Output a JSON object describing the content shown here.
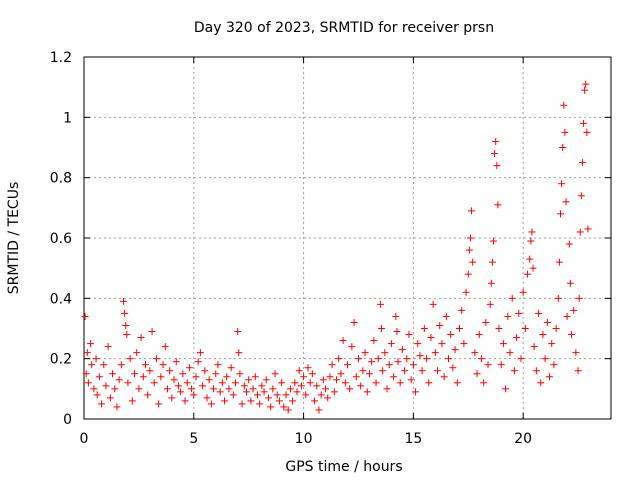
{
  "chart_data": {
    "type": "scatter",
    "title": "Day 320 of 2023, SRMTID for receiver prsn",
    "xlabel": "GPS time / hours",
    "ylabel": "SRMTID / TECUs",
    "xlim": [
      0,
      24
    ],
    "ylim": [
      0,
      1.2
    ],
    "xticks": [
      0,
      5,
      10,
      15,
      20
    ],
    "yticks": [
      0,
      0.2,
      0.4,
      0.6,
      0.8,
      1.0,
      1.2
    ],
    "xtick_labels": [
      "0",
      "5",
      "10",
      "15",
      "20"
    ],
    "ytick_labels": [
      "0",
      "0.2",
      "0.4",
      "0.6",
      "0.8",
      "1",
      "1.2"
    ],
    "grid": true,
    "marker": "+",
    "color": "#ff0000",
    "series": [
      {
        "name": "SRMTID",
        "points": [
          [
            0.05,
            0.34
          ],
          [
            0.1,
            0.15
          ],
          [
            0.15,
            0.22
          ],
          [
            0.2,
            0.12
          ],
          [
            0.3,
            0.25
          ],
          [
            0.35,
            0.18
          ],
          [
            0.45,
            0.1
          ],
          [
            0.55,
            0.2
          ],
          [
            0.6,
            0.08
          ],
          [
            0.7,
            0.14
          ],
          [
            0.8,
            0.05
          ],
          [
            0.9,
            0.18
          ],
          [
            1.0,
            0.11
          ],
          [
            1.1,
            0.24
          ],
          [
            1.2,
            0.07
          ],
          [
            1.3,
            0.15
          ],
          [
            1.4,
            0.1
          ],
          [
            1.5,
            0.04
          ],
          [
            1.6,
            0.13
          ],
          [
            1.7,
            0.18
          ],
          [
            1.8,
            0.39
          ],
          [
            1.85,
            0.35
          ],
          [
            1.9,
            0.31
          ],
          [
            1.95,
            0.28
          ],
          [
            2.0,
            0.12
          ],
          [
            2.1,
            0.2
          ],
          [
            2.2,
            0.06
          ],
          [
            2.3,
            0.15
          ],
          [
            2.4,
            0.22
          ],
          [
            2.5,
            0.1
          ],
          [
            2.6,
            0.27
          ],
          [
            2.7,
            0.14
          ],
          [
            2.8,
            0.18
          ],
          [
            2.9,
            0.08
          ],
          [
            3.0,
            0.16
          ],
          [
            3.1,
            0.29
          ],
          [
            3.2,
            0.12
          ],
          [
            3.3,
            0.2
          ],
          [
            3.4,
            0.05
          ],
          [
            3.5,
            0.14
          ],
          [
            3.6,
            0.18
          ],
          [
            3.7,
            0.24
          ],
          [
            3.8,
            0.1
          ],
          [
            3.9,
            0.16
          ],
          [
            4.0,
            0.07
          ],
          [
            4.1,
            0.13
          ],
          [
            4.2,
            0.19
          ],
          [
            4.3,
            0.11
          ],
          [
            4.4,
            0.09
          ],
          [
            4.5,
            0.15
          ],
          [
            4.6,
            0.06
          ],
          [
            4.7,
            0.12
          ],
          [
            4.8,
            0.17
          ],
          [
            4.9,
            0.1
          ],
          [
            5.0,
            0.08
          ],
          [
            5.1,
            0.14
          ],
          [
            5.2,
            0.19
          ],
          [
            5.3,
            0.22
          ],
          [
            5.4,
            0.11
          ],
          [
            5.5,
            0.16
          ],
          [
            5.6,
            0.07
          ],
          [
            5.7,
            0.13
          ],
          [
            5.8,
            0.05
          ],
          [
            5.9,
            0.1
          ],
          [
            6.0,
            0.15
          ],
          [
            6.1,
            0.18
          ],
          [
            6.2,
            0.09
          ],
          [
            6.3,
            0.12
          ],
          [
            6.4,
            0.06
          ],
          [
            6.5,
            0.14
          ],
          [
            6.6,
            0.1
          ],
          [
            6.7,
            0.17
          ],
          [
            6.8,
            0.08
          ],
          [
            6.9,
            0.12
          ],
          [
            7.0,
            0.29
          ],
          [
            7.05,
            0.22
          ],
          [
            7.1,
            0.15
          ],
          [
            7.2,
            0.05
          ],
          [
            7.3,
            0.11
          ],
          [
            7.4,
            0.09
          ],
          [
            7.5,
            0.13
          ],
          [
            7.6,
            0.06
          ],
          [
            7.7,
            0.1
          ],
          [
            7.8,
            0.14
          ],
          [
            7.9,
            0.08
          ],
          [
            8.0,
            0.05
          ],
          [
            8.1,
            0.11
          ],
          [
            8.2,
            0.09
          ],
          [
            8.3,
            0.13
          ],
          [
            8.4,
            0.07
          ],
          [
            8.5,
            0.04
          ],
          [
            8.6,
            0.1
          ],
          [
            8.7,
            0.15
          ],
          [
            8.8,
            0.08
          ],
          [
            8.9,
            0.06
          ],
          [
            9.0,
            0.12
          ],
          [
            9.1,
            0.04
          ],
          [
            9.2,
            0.08
          ],
          [
            9.3,
            0.03
          ],
          [
            9.4,
            0.1
          ],
          [
            9.5,
            0.06
          ],
          [
            9.6,
            0.12
          ],
          [
            9.7,
            0.09
          ],
          [
            9.8,
            0.16
          ],
          [
            9.9,
            0.11
          ],
          [
            10.0,
            0.14
          ],
          [
            10.1,
            0.08
          ],
          [
            10.2,
            0.17
          ],
          [
            10.3,
            0.12
          ],
          [
            10.4,
            0.15
          ],
          [
            10.5,
            0.06
          ],
          [
            10.6,
            0.11
          ],
          [
            10.7,
            0.03
          ],
          [
            10.8,
            0.08
          ],
          [
            10.9,
            0.13
          ],
          [
            11.0,
            0.1
          ],
          [
            11.1,
            0.07
          ],
          [
            11.2,
            0.14
          ],
          [
            11.3,
            0.18
          ],
          [
            11.4,
            0.09
          ],
          [
            11.5,
            0.13
          ],
          [
            11.6,
            0.2
          ],
          [
            11.7,
            0.15
          ],
          [
            11.8,
            0.26
          ],
          [
            11.9,
            0.12
          ],
          [
            12.0,
            0.18
          ],
          [
            12.1,
            0.1
          ],
          [
            12.2,
            0.24
          ],
          [
            12.3,
            0.32
          ],
          [
            12.4,
            0.14
          ],
          [
            12.5,
            0.2
          ],
          [
            12.6,
            0.11
          ],
          [
            12.7,
            0.16
          ],
          [
            12.8,
            0.22
          ],
          [
            12.9,
            0.09
          ],
          [
            13.0,
            0.15
          ],
          [
            13.1,
            0.19
          ],
          [
            13.2,
            0.26
          ],
          [
            13.3,
            0.12
          ],
          [
            13.4,
            0.2
          ],
          [
            13.5,
            0.38
          ],
          [
            13.55,
            0.3
          ],
          [
            13.6,
            0.16
          ],
          [
            13.7,
            0.22
          ],
          [
            13.8,
            0.1
          ],
          [
            13.9,
            0.18
          ],
          [
            14.0,
            0.25
          ],
          [
            14.1,
            0.14
          ],
          [
            14.2,
            0.34
          ],
          [
            14.25,
            0.29
          ],
          [
            14.3,
            0.19
          ],
          [
            14.4,
            0.12
          ],
          [
            14.5,
            0.23
          ],
          [
            14.6,
            0.16
          ],
          [
            14.7,
            0.2
          ],
          [
            14.8,
            0.28
          ],
          [
            14.9,
            0.13
          ],
          [
            15.0,
            0.18
          ],
          [
            15.1,
            0.09
          ],
          [
            15.2,
            0.25
          ],
          [
            15.3,
            0.21
          ],
          [
            15.4,
            0.16
          ],
          [
            15.5,
            0.3
          ],
          [
            15.6,
            0.2
          ],
          [
            15.7,
            0.12
          ],
          [
            15.8,
            0.27
          ],
          [
            15.9,
            0.38
          ],
          [
            16.0,
            0.22
          ],
          [
            16.1,
            0.16
          ],
          [
            16.2,
            0.31
          ],
          [
            16.3,
            0.25
          ],
          [
            16.4,
            0.14
          ],
          [
            16.5,
            0.34
          ],
          [
            16.6,
            0.2
          ],
          [
            16.7,
            0.28
          ],
          [
            16.8,
            0.17
          ],
          [
            16.9,
            0.23
          ],
          [
            17.0,
            0.12
          ],
          [
            17.1,
            0.3
          ],
          [
            17.2,
            0.36
          ],
          [
            17.3,
            0.25
          ],
          [
            17.4,
            0.42
          ],
          [
            17.5,
            0.48
          ],
          [
            17.55,
            0.56
          ],
          [
            17.6,
            0.6
          ],
          [
            17.65,
            0.69
          ],
          [
            17.7,
            0.52
          ],
          [
            17.8,
            0.22
          ],
          [
            17.9,
            0.15
          ],
          [
            18.0,
            0.28
          ],
          [
            18.1,
            0.2
          ],
          [
            18.2,
            0.12
          ],
          [
            18.3,
            0.32
          ],
          [
            18.4,
            0.18
          ],
          [
            18.5,
            0.38
          ],
          [
            18.55,
            0.45
          ],
          [
            18.6,
            0.52
          ],
          [
            18.65,
            0.59
          ],
          [
            18.7,
            0.88
          ],
          [
            18.75,
            0.92
          ],
          [
            18.8,
            0.84
          ],
          [
            18.85,
            0.71
          ],
          [
            18.9,
            0.3
          ],
          [
            19.0,
            0.18
          ],
          [
            19.1,
            0.25
          ],
          [
            19.2,
            0.1
          ],
          [
            19.3,
            0.34
          ],
          [
            19.4,
            0.22
          ],
          [
            19.5,
            0.4
          ],
          [
            19.6,
            0.16
          ],
          [
            19.7,
            0.27
          ],
          [
            19.8,
            0.35
          ],
          [
            19.9,
            0.2
          ],
          [
            20.0,
            0.42
          ],
          [
            20.1,
            0.3
          ],
          [
            20.2,
            0.48
          ],
          [
            20.3,
            0.53
          ],
          [
            20.35,
            0.59
          ],
          [
            20.4,
            0.62
          ],
          [
            20.45,
            0.5
          ],
          [
            20.5,
            0.24
          ],
          [
            20.6,
            0.16
          ],
          [
            20.7,
            0.35
          ],
          [
            20.8,
            0.12
          ],
          [
            20.9,
            0.28
          ],
          [
            21.0,
            0.2
          ],
          [
            21.1,
            0.32
          ],
          [
            21.2,
            0.14
          ],
          [
            21.3,
            0.25
          ],
          [
            21.4,
            0.18
          ],
          [
            21.5,
            0.3
          ],
          [
            21.6,
            0.4
          ],
          [
            21.65,
            0.52
          ],
          [
            21.7,
            0.68
          ],
          [
            21.75,
            0.78
          ],
          [
            21.8,
            0.9
          ],
          [
            21.85,
            1.04
          ],
          [
            21.9,
            0.95
          ],
          [
            21.95,
            0.72
          ],
          [
            22.0,
            0.34
          ],
          [
            22.1,
            0.58
          ],
          [
            22.15,
            0.45
          ],
          [
            22.2,
            0.28
          ],
          [
            22.3,
            0.36
          ],
          [
            22.4,
            0.22
          ],
          [
            22.5,
            0.16
          ],
          [
            22.55,
            0.4
          ],
          [
            22.6,
            0.62
          ],
          [
            22.65,
            0.74
          ],
          [
            22.7,
            0.85
          ],
          [
            22.75,
            0.98
          ],
          [
            22.8,
            1.09
          ],
          [
            22.85,
            1.11
          ],
          [
            22.9,
            0.95
          ],
          [
            22.95,
            0.63
          ]
        ]
      }
    ]
  }
}
